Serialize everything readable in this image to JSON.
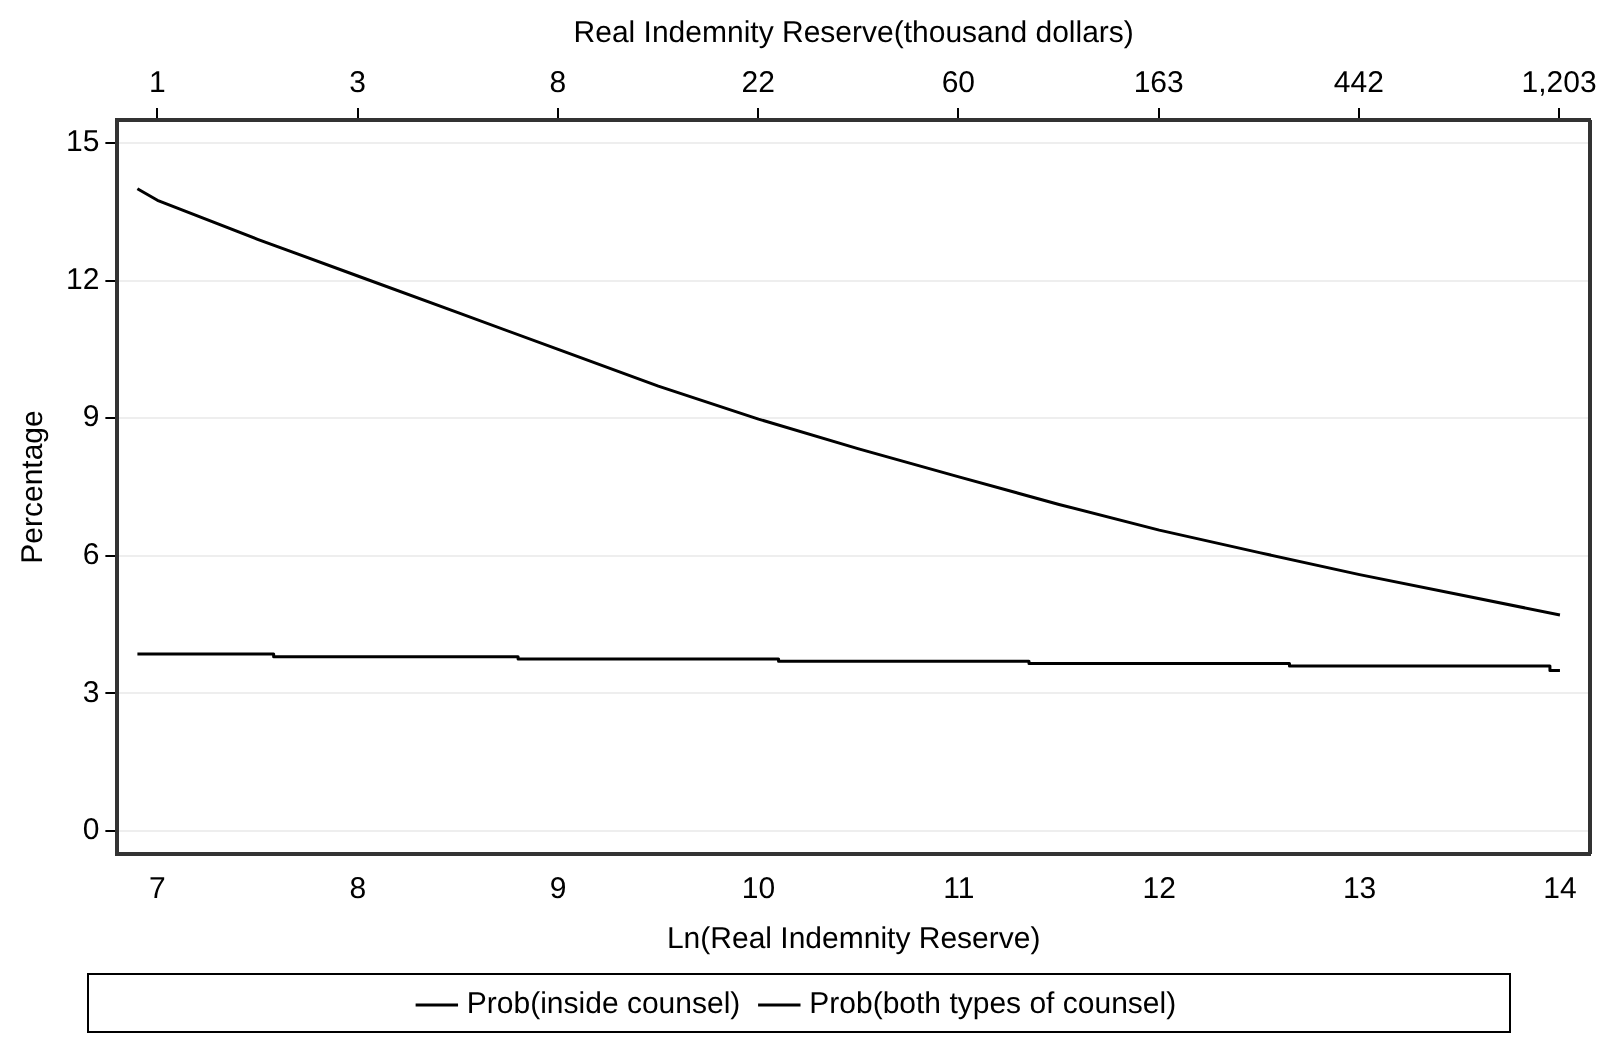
{
  "chart_data": {
    "type": "line",
    "xlabel": "Ln(Real Indemnity Reserve)",
    "ylabel": "Percentage",
    "x2label": "Real Indemnity Reserve(thousand dollars)",
    "xlim": [
      6.8,
      14.15
    ],
    "xticks": [
      7,
      8,
      9,
      10,
      11,
      12,
      13,
      14
    ],
    "x2lim": [
      0.898,
      1403
    ],
    "log": "x2",
    "x2ticks": [
      {
        "value": 1.097,
        "label": "1"
      },
      {
        "value": 2.981,
        "label": "3"
      },
      {
        "value": 8.103,
        "label": "8"
      },
      {
        "value": 22.03,
        "label": "22"
      },
      {
        "value": 59.87,
        "label": "60"
      },
      {
        "value": 162.8,
        "label": "163"
      },
      {
        "value": 442.4,
        "label": "442"
      },
      {
        "value": 1202.6,
        "label": "1,203"
      }
    ],
    "ylim": [
      -0.5,
      15.5
    ],
    "yticks": [
      0,
      3,
      6,
      9,
      12,
      15
    ],
    "grid": "y",
    "legend": "bottom",
    "series": [
      {
        "name": "Prob(inside counsel)",
        "color": "#000000",
        "x": [
          6.9,
          7,
          7.5,
          8,
          8.5,
          9,
          9.5,
          10,
          10.5,
          11,
          11.5,
          12,
          12.5,
          13,
          13.5,
          14
        ],
        "values": [
          14.0,
          13.75,
          12.9,
          12.1,
          11.3,
          10.5,
          9.7,
          8.98,
          8.33,
          7.72,
          7.12,
          6.56,
          6.07,
          5.59,
          5.15,
          4.71
        ]
      },
      {
        "name": "Prob(both types of counsel)",
        "type": "step",
        "color": "#000000",
        "x": [
          6.9,
          7.58,
          8.8,
          10.1,
          11.35,
          12.65,
          13.95,
          14
        ],
        "values": [
          3.86,
          3.8,
          3.75,
          3.7,
          3.65,
          3.6,
          3.5,
          3.5
        ]
      }
    ]
  }
}
